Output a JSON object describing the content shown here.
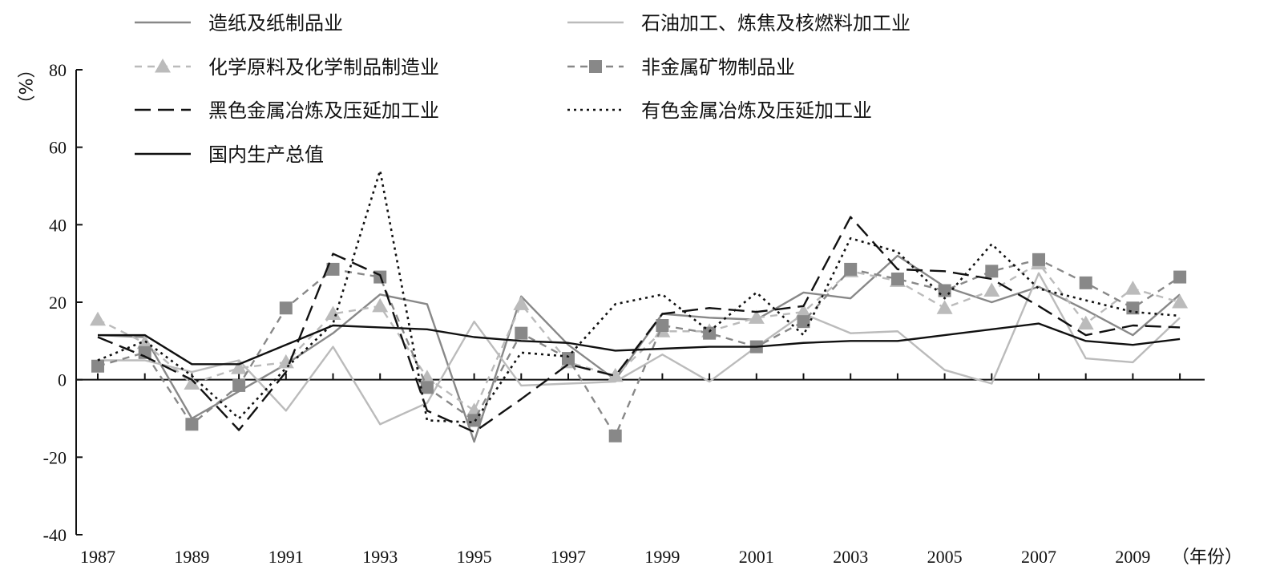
{
  "chart_data": {
    "type": "line",
    "title": "",
    "xlabel": "（年份）",
    "ylabel": "（%）",
    "ylim": [
      -40,
      80
    ],
    "yticks": [
      -40,
      -20,
      0,
      20,
      40,
      60,
      80
    ],
    "ytick_labels": [
      "-40",
      "-20",
      "0",
      "20",
      "40",
      "60",
      "80"
    ],
    "xticks": [
      1987,
      1989,
      1991,
      1993,
      1995,
      1997,
      1999,
      2001,
      2003,
      2005,
      2007,
      2009
    ],
    "xtick_labels": [
      "1987",
      "1989",
      "1991",
      "1993",
      "1995",
      "1997",
      "1999",
      "2001",
      "2003",
      "2005",
      "2007",
      "2009"
    ],
    "x": [
      1987,
      1988,
      1989,
      1990,
      1991,
      1992,
      1993,
      1994,
      1995,
      1996,
      1997,
      1998,
      1999,
      2000,
      2001,
      2002,
      2003,
      2004,
      2005,
      2006,
      2007,
      2008,
      2009,
      2010
    ],
    "grid": false,
    "legend_position": "top",
    "series": [
      {
        "name": "造纸及纸制品业",
        "color": "#888888",
        "dash": "",
        "marker": "none",
        "values": [
          11.5,
          11,
          -10,
          -3,
          4,
          12,
          22,
          19.5,
          -16,
          21.5,
          9,
          0,
          17,
          16,
          15.5,
          22.5,
          21,
          32,
          24,
          20,
          24,
          18,
          11.5,
          22
        ]
      },
      {
        "name": "石油加工、炼焦及核燃料加工业",
        "color": "#bbbbbb",
        "dash": "",
        "marker": "none",
        "values": [
          5,
          5,
          2,
          5,
          -8,
          8.5,
          -11.5,
          -6,
          15,
          -1.5,
          -1,
          -0.5,
          6.5,
          -0.5,
          8.5,
          17,
          12,
          12.5,
          2.5,
          -1,
          27.5,
          5.5,
          4.5,
          16
        ]
      },
      {
        "name": "化学原料及化学制品制造业",
        "color": "#bbbbbb",
        "dash": "9 7",
        "marker": "triangle",
        "values": [
          15.5,
          9.5,
          -1,
          3,
          4.5,
          17,
          19,
          0.5,
          -8,
          19.5,
          4.5,
          1,
          12.5,
          12.5,
          16,
          17.5,
          28,
          25.5,
          18.5,
          23,
          30,
          14.5,
          23.5,
          20
        ]
      },
      {
        "name": "非金属矿物制品业",
        "color": "#888888",
        "dash": "9 7",
        "marker": "square",
        "values": [
          3.5,
          7,
          -11.5,
          -1.5,
          18.5,
          28.5,
          26.5,
          -2,
          -10.5,
          12,
          5.5,
          -14.5,
          14,
          12,
          8.5,
          15,
          28.5,
          26,
          23,
          28,
          31,
          25,
          18.5,
          26.5
        ]
      },
      {
        "name": "黑色金属冶炼及压延加工业",
        "color": "#111111",
        "dash": "20 9",
        "marker": "none",
        "values": [
          11,
          6,
          0,
          -13,
          2,
          32.5,
          27,
          -8,
          -13.5,
          -5,
          4,
          1,
          17,
          18.5,
          17.5,
          19,
          42,
          28.5,
          28,
          26,
          19,
          11.5,
          14,
          13.5
        ]
      },
      {
        "name": "有色金属冶炼及压延加工业",
        "color": "#111111",
        "dash": "3 5",
        "marker": "none",
        "values": [
          5,
          10,
          1,
          -10,
          3,
          14.5,
          54,
          -10.5,
          -11,
          7,
          6,
          19.5,
          22,
          12.5,
          22.5,
          11.5,
          36.5,
          33,
          21,
          35,
          23.5,
          20.5,
          17.5,
          16.5
        ]
      },
      {
        "name": "国内生产总值",
        "color": "#111111",
        "dash": "",
        "marker": "none",
        "values": [
          11.5,
          11.5,
          4,
          4,
          9,
          14,
          13.5,
          13,
          11,
          10,
          9.5,
          7.5,
          8,
          8.5,
          8.5,
          9.5,
          10,
          10,
          11.5,
          13,
          14.5,
          10,
          9,
          10.5
        ]
      }
    ]
  }
}
